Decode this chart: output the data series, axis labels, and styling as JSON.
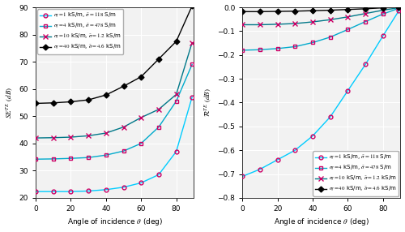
{
  "left_ylabel": "$SE^{TE}$ $(dB)$",
  "right_ylabel": "$\\mathcal{R}^{TE}$ $(dB)$",
  "xlabel": "Angle of incidence $\\theta$ (deg)",
  "xlim": [
    0,
    90
  ],
  "left_ylim": [
    20,
    90
  ],
  "right_ylim": [
    -0.8,
    0
  ],
  "left_yticks": [
    20,
    30,
    40,
    50,
    60,
    70,
    80,
    90
  ],
  "right_yticks": [
    0,
    -0.1,
    -0.2,
    -0.3,
    -0.4,
    -0.5,
    -0.6,
    -0.7,
    -0.8
  ],
  "xticks": [
    0,
    20,
    40,
    60,
    80
  ],
  "bg_color": "#f2f2f2",
  "series": [
    {
      "label_left": "$\\sigma_f = 1$ kS/m, $\\tilde{\\sigma} = 118$ S/m",
      "label_right": "$\\sigma_f = 1$ kS/m, $\\tilde{\\sigma} = 118$ S/m",
      "line_color": "#00cfff",
      "marker": "o",
      "marker_color": "#cc0066",
      "se_line": [
        22.3,
        22.3,
        22.3,
        22.5,
        23.0,
        23.9,
        25.5,
        28.5,
        37.0,
        57.0
      ],
      "rc_line": [
        -0.71,
        -0.68,
        -0.64,
        -0.6,
        -0.54,
        -0.46,
        -0.35,
        -0.24,
        -0.12,
        -0.015
      ]
    },
    {
      "label_left": "$\\sigma_f = 4$ kS/m, $\\tilde{\\sigma} = 478$ S/m",
      "label_right": "$\\sigma_f = 4$ kS/m, $\\tilde{\\sigma} = 478$ S/m",
      "line_color": "#00aacc",
      "marker": "s",
      "marker_color": "#cc0066",
      "se_line": [
        34.2,
        34.3,
        34.5,
        34.8,
        35.7,
        37.2,
        40.0,
        46.0,
        55.5,
        69.0
      ],
      "rc_line": [
        -0.18,
        -0.178,
        -0.173,
        -0.165,
        -0.148,
        -0.125,
        -0.093,
        -0.06,
        -0.028,
        -0.004
      ]
    },
    {
      "label_left": "$\\sigma_f = 10$ kS/m, $\\tilde{\\sigma} = 1.2$ kS/m",
      "label_right": "$\\sigma_f = 10$ kS/m, $\\tilde{\\sigma} = 1.2$ kS/m",
      "line_color": "#007788",
      "marker": "x",
      "marker_color": "#cc0066",
      "se_line": [
        42.0,
        42.1,
        42.3,
        42.8,
        43.8,
        46.0,
        49.5,
        52.5,
        58.0,
        77.0
      ],
      "rc_line": [
        -0.073,
        -0.073,
        -0.071,
        -0.068,
        -0.061,
        -0.052,
        -0.04,
        -0.026,
        -0.012,
        -0.0015
      ]
    },
    {
      "label_left": "$\\sigma_f = 40$ kS/m, $\\tilde{\\sigma} = 4.6$ kS/m",
      "label_right": "$\\sigma_f = 40$ kS/m, $\\tilde{\\sigma} = 4.6$ kS/m",
      "line_color": "#000000",
      "marker": "D",
      "marker_color": "#000000",
      "se_line": [
        54.7,
        54.9,
        55.3,
        56.0,
        57.8,
        61.0,
        64.5,
        71.0,
        77.5,
        90.5
      ],
      "rc_line": [
        -0.018,
        -0.018,
        -0.017,
        -0.016,
        -0.014,
        -0.012,
        -0.009,
        -0.006,
        -0.002,
        -0.0003
      ]
    }
  ],
  "theta": [
    0,
    10,
    20,
    30,
    40,
    50,
    60,
    70,
    80,
    89
  ]
}
